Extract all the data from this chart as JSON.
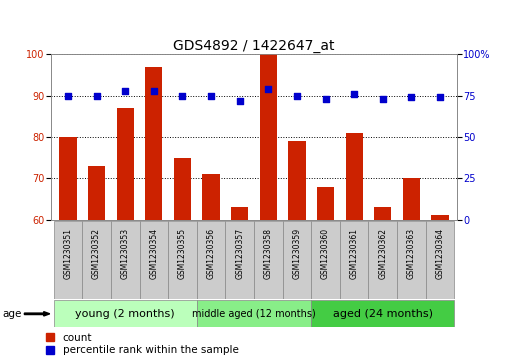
{
  "title": "GDS4892 / 1422647_at",
  "samples": [
    "GSM1230351",
    "GSM1230352",
    "GSM1230353",
    "GSM1230354",
    "GSM1230355",
    "GSM1230356",
    "GSM1230357",
    "GSM1230358",
    "GSM1230359",
    "GSM1230360",
    "GSM1230361",
    "GSM1230362",
    "GSM1230363",
    "GSM1230364"
  ],
  "count_values": [
    80,
    73,
    87,
    97,
    75,
    71,
    63,
    100,
    79,
    68,
    81,
    63,
    70,
    61
  ],
  "percentile_values": [
    75,
    75,
    78,
    78,
    75,
    75,
    72,
    79,
    75,
    73,
    76,
    73,
    74,
    74
  ],
  "ylim_left": [
    60,
    100
  ],
  "ylim_right": [
    0,
    100
  ],
  "yticks_left": [
    60,
    70,
    80,
    90,
    100
  ],
  "yticks_right": [
    0,
    25,
    50,
    75,
    100
  ],
  "groups": [
    {
      "label": "young (2 months)",
      "start": 0,
      "end": 5,
      "color": "#bbffbb",
      "fontsize": 8
    },
    {
      "label": "middle aged (12 months)",
      "start": 5,
      "end": 9,
      "color": "#88ee88",
      "fontsize": 7
    },
    {
      "label": "aged (24 months)",
      "start": 9,
      "end": 14,
      "color": "#44cc44",
      "fontsize": 8
    }
  ],
  "bar_color": "#cc2200",
  "dot_color": "#0000cc",
  "grid_color": "#000000",
  "bg_color": "#ffffff",
  "tick_label_color_left": "#cc2200",
  "tick_label_color_right": "#0000cc",
  "title_fontsize": 10,
  "tick_fontsize": 7,
  "label_fontsize": 7.5,
  "legend_fontsize": 7.5,
  "sample_box_color": "#cccccc",
  "sample_box_edge": "#888888"
}
